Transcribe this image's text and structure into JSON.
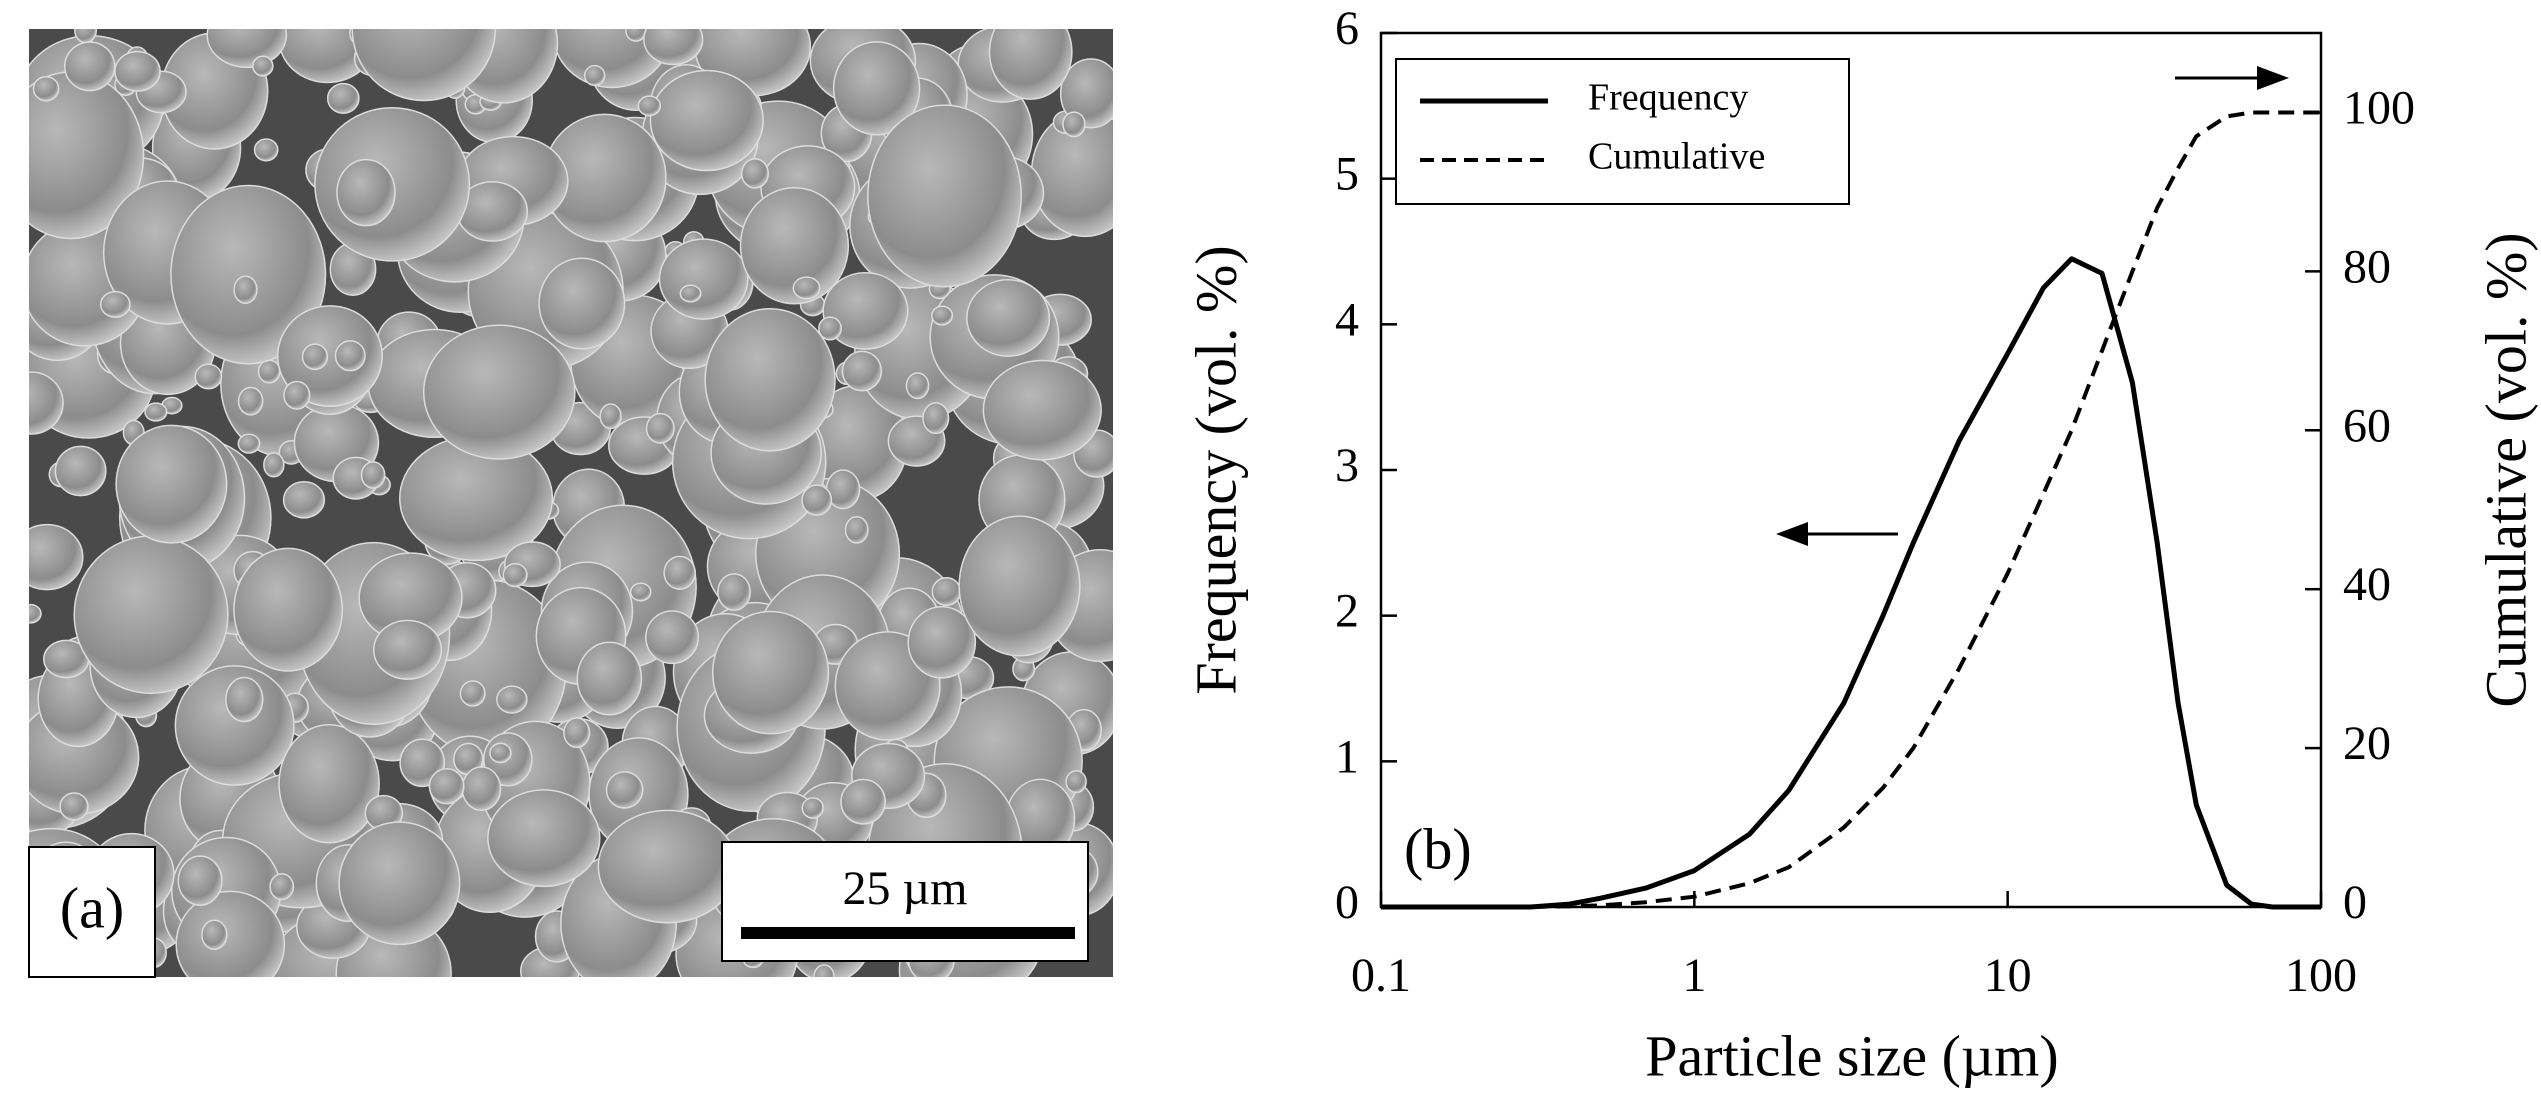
{
  "image_panel": {
    "label": "(a)",
    "scale_bar_label": "25 µm"
  },
  "chart_data": {
    "type": "line",
    "panel_label": "(b)",
    "x_label": "Particle size (µm)",
    "y_label": "Frequency (vol. %)",
    "y2_label": "Cumulative (vol. %)",
    "x_scale": "log",
    "xlim": [
      0.1,
      100
    ],
    "xticks": [
      0.1,
      1,
      10,
      100
    ],
    "ylim": [
      0,
      6
    ],
    "yticks": [
      0,
      1,
      2,
      3,
      4,
      5,
      6
    ],
    "y2lim": [
      0,
      110
    ],
    "y2ticks": [
      0,
      20,
      40,
      60,
      80,
      100
    ],
    "legend": "upper left",
    "grid": false,
    "x": [
      0.1,
      0.2,
      0.3,
      0.4,
      0.5,
      0.7,
      1,
      1.5,
      2,
      3,
      4,
      5,
      7,
      10,
      13,
      16,
      20,
      25,
      30,
      35,
      40,
      50,
      60,
      70,
      100
    ],
    "series": [
      {
        "name": "Frequency",
        "color": "#000000",
        "line_style": "solid",
        "axis": "y",
        "values": [
          0,
          0,
          0,
          0.02,
          0.06,
          0.13,
          0.25,
          0.5,
          0.8,
          1.4,
          2.0,
          2.5,
          3.2,
          3.8,
          4.25,
          4.45,
          4.35,
          3.6,
          2.5,
          1.4,
          0.7,
          0.15,
          0.02,
          0,
          0
        ]
      },
      {
        "name": "Cumulative",
        "color": "#000000",
        "line_style": "dashed",
        "axis": "y2",
        "values": [
          0,
          0,
          0,
          0.1,
          0.2,
          0.6,
          1.3,
          3,
          5,
          10,
          15,
          20,
          30,
          42,
          52,
          60,
          70,
          80,
          88,
          93,
          97,
          99.5,
          100,
          100,
          100
        ]
      }
    ]
  }
}
